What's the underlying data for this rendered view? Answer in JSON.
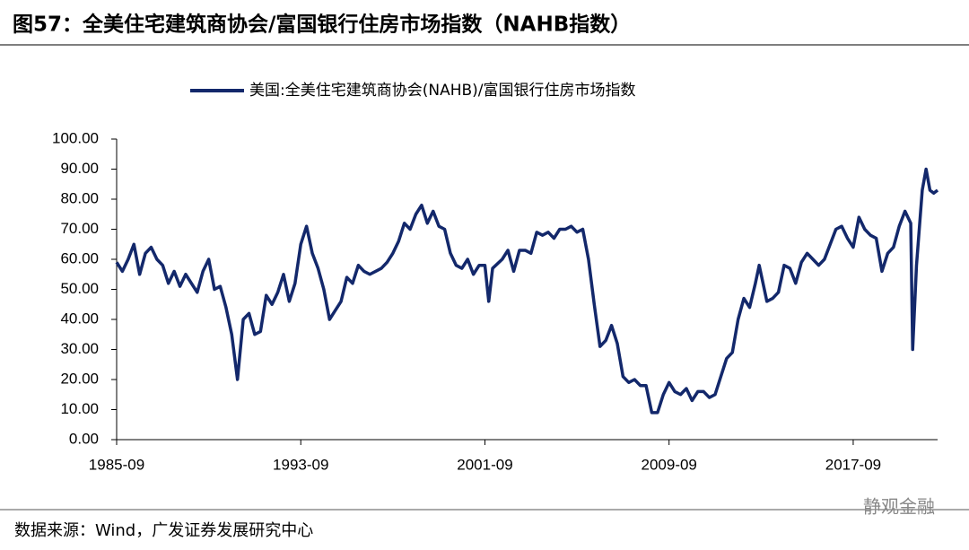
{
  "chart_data": {
    "type": "line",
    "title": "图57：全美住宅建筑商协会/富国银行住房市场指数（NAHB指数）",
    "source": "数据来源：Wind，广发证券发展研究中心",
    "watermark": "静观金融",
    "x": [
      "1985-09",
      "1985-12",
      "1986-03",
      "1986-06",
      "1986-09",
      "1986-12",
      "1987-03",
      "1987-06",
      "1987-09",
      "1987-12",
      "1988-03",
      "1988-06",
      "1988-09",
      "1988-12",
      "1989-03",
      "1989-06",
      "1989-09",
      "1989-12",
      "1990-03",
      "1990-06",
      "1990-09",
      "1990-12",
      "1991-03",
      "1991-06",
      "1991-09",
      "1991-12",
      "1992-03",
      "1992-06",
      "1992-09",
      "1992-12",
      "1993-03",
      "1993-06",
      "1993-09",
      "1993-12",
      "1994-03",
      "1994-06",
      "1994-09",
      "1994-12",
      "1995-03",
      "1995-06",
      "1995-09",
      "1995-12",
      "1996-03",
      "1996-06",
      "1996-09",
      "1996-12",
      "1997-03",
      "1997-06",
      "1997-09",
      "1997-12",
      "1998-03",
      "1998-06",
      "1998-09",
      "1998-12",
      "1999-03",
      "1999-06",
      "1999-09",
      "1999-12",
      "2000-03",
      "2000-06",
      "2000-09",
      "2000-12",
      "2001-03",
      "2001-06",
      "2001-09",
      "2001-11",
      "2002-01",
      "2002-06",
      "2002-09",
      "2002-12",
      "2003-03",
      "2003-06",
      "2003-09",
      "2003-12",
      "2004-03",
      "2004-06",
      "2004-09",
      "2004-12",
      "2005-03",
      "2005-06",
      "2005-09",
      "2005-12",
      "2006-03",
      "2006-06",
      "2006-09",
      "2006-12",
      "2007-03",
      "2007-06",
      "2007-09",
      "2007-12",
      "2008-03",
      "2008-06",
      "2008-09",
      "2008-12",
      "2009-03",
      "2009-06",
      "2009-09",
      "2009-12",
      "2010-03",
      "2010-06",
      "2010-09",
      "2010-12",
      "2011-03",
      "2011-06",
      "2011-09",
      "2011-12",
      "2012-03",
      "2012-06",
      "2012-09",
      "2012-12",
      "2013-03",
      "2013-06",
      "2013-08",
      "2013-12",
      "2014-03",
      "2014-06",
      "2014-09",
      "2014-12",
      "2015-03",
      "2015-06",
      "2015-09",
      "2015-12",
      "2016-03",
      "2016-06",
      "2016-09",
      "2016-12",
      "2017-03",
      "2017-06",
      "2017-09",
      "2017-12",
      "2018-03",
      "2018-06",
      "2018-09",
      "2018-12",
      "2019-03",
      "2019-06",
      "2019-09",
      "2019-12",
      "2020-03",
      "2020-04",
      "2020-06",
      "2020-09",
      "2020-11",
      "2021-01",
      "2021-03",
      "2021-05"
    ],
    "series": [
      {
        "name": "美国:全美住宅建筑商协会(NAHB)/富国银行住房市场指数",
        "color": "#13286b",
        "values": [
          59,
          56,
          60,
          65,
          55,
          62,
          64,
          60,
          58,
          52,
          56,
          51,
          55,
          52,
          49,
          56,
          60,
          50,
          51,
          44,
          35,
          20,
          40,
          42,
          35,
          36,
          48,
          45,
          49,
          55,
          46,
          52,
          65,
          71,
          62,
          57,
          50,
          40,
          43,
          46,
          54,
          52,
          58,
          56,
          55,
          56,
          57,
          59,
          62,
          66,
          72,
          70,
          75,
          78,
          72,
          76,
          71,
          70,
          62,
          58,
          57,
          60,
          55,
          58,
          58,
          46,
          57,
          60,
          63,
          56,
          63,
          63,
          62,
          69,
          68,
          69,
          67,
          70,
          70,
          71,
          69,
          70,
          60,
          45,
          31,
          33,
          38,
          32,
          21,
          19,
          20,
          18,
          18,
          9,
          9,
          15,
          19,
          16,
          15,
          17,
          13,
          16,
          16,
          14,
          15,
          21,
          27,
          29,
          40,
          47,
          44,
          52,
          58,
          46,
          47,
          49,
          58,
          57,
          52,
          59,
          62,
          60,
          58,
          60,
          65,
          70,
          71,
          67,
          64,
          74,
          70,
          68,
          67,
          56,
          62,
          64,
          71,
          76,
          72,
          30,
          58,
          83,
          90,
          83,
          82,
          83
        ]
      }
    ],
    "xlim": [
      "1985-09",
      "2021-05"
    ],
    "xticks": [
      "1985-09",
      "1993-09",
      "2001-09",
      "2009-09",
      "2017-09"
    ],
    "ylim": [
      0,
      100
    ],
    "yticks": [
      {
        "value": 0,
        "label": "0.00"
      },
      {
        "value": 10,
        "label": "10.00"
      },
      {
        "value": 20,
        "label": "20.00"
      },
      {
        "value": 30,
        "label": "30.00"
      },
      {
        "value": 40,
        "label": "40.00"
      },
      {
        "value": 50,
        "label": "50.00"
      },
      {
        "value": 60,
        "label": "60.00"
      },
      {
        "value": 70,
        "label": "70.00"
      },
      {
        "value": 80,
        "label": "80.00"
      },
      {
        "value": 90,
        "label": "90.00"
      },
      {
        "value": 100,
        "label": "100.00"
      }
    ]
  }
}
